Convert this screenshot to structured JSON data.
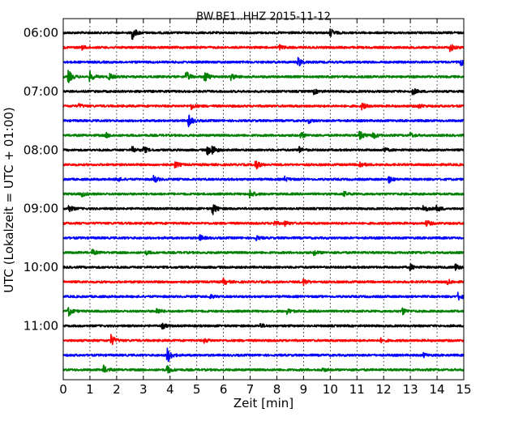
{
  "chart_data": {
    "type": "line",
    "title": "BW.BE1..HHZ 2015-11-12",
    "xlabel": "Zeit  [min]",
    "ylabel": "UTC (Lokalzeit = UTC + 01:00)",
    "xlim": [
      0,
      15
    ],
    "x_ticks": [
      "0",
      "1",
      "2",
      "3",
      "4",
      "5",
      "6",
      "7",
      "8",
      "9",
      "10",
      "11",
      "12",
      "13",
      "14",
      "15"
    ],
    "y_tick_labels": [
      "06:00",
      "07:00",
      "08:00",
      "09:00",
      "10:00",
      "11:00"
    ],
    "trace_interval_minutes": 15,
    "first_trace_start": "06:00",
    "color_cycle": [
      "#000000",
      "#ff0000",
      "#0000ff",
      "#008000"
    ],
    "grid": "vertical dotted",
    "series": [
      {
        "start": "06:00",
        "color": "#000000",
        "events": [
          {
            "t": 2.6,
            "a": 1.0
          },
          {
            "t": 10.0,
            "a": 0.7
          }
        ]
      },
      {
        "start": "06:15",
        "color": "#ff0000",
        "events": [
          {
            "t": 0.7,
            "a": 0.3
          },
          {
            "t": 8.1,
            "a": 0.4
          },
          {
            "t": 14.5,
            "a": 0.6
          }
        ]
      },
      {
        "start": "06:30",
        "color": "#0000ff",
        "events": [
          {
            "t": 8.8,
            "a": 0.8
          },
          {
            "t": 14.9,
            "a": 0.5
          }
        ]
      },
      {
        "start": "06:45",
        "color": "#008000",
        "events": [
          {
            "t": 0.2,
            "a": 1.0
          },
          {
            "t": 1.0,
            "a": 0.8
          },
          {
            "t": 1.7,
            "a": 0.6
          },
          {
            "t": 4.6,
            "a": 0.9
          },
          {
            "t": 5.3,
            "a": 1.0
          },
          {
            "t": 6.3,
            "a": 0.5
          }
        ]
      },
      {
        "start": "07:00",
        "color": "#000000",
        "events": [
          {
            "t": 9.4,
            "a": 0.4
          },
          {
            "t": 13.1,
            "a": 0.5
          }
        ]
      },
      {
        "start": "07:15",
        "color": "#ff0000",
        "events": [
          {
            "t": 0.6,
            "a": 0.3
          },
          {
            "t": 4.8,
            "a": 0.5
          },
          {
            "t": 11.2,
            "a": 0.5
          },
          {
            "t": 13.3,
            "a": 0.4
          }
        ]
      },
      {
        "start": "07:30",
        "color": "#0000ff",
        "events": [
          {
            "t": 4.7,
            "a": 1.0
          },
          {
            "t": 9.2,
            "a": 0.3
          }
        ]
      },
      {
        "start": "07:45",
        "color": "#008000",
        "events": [
          {
            "t": 1.6,
            "a": 0.4
          },
          {
            "t": 8.9,
            "a": 0.5
          },
          {
            "t": 11.1,
            "a": 0.8
          },
          {
            "t": 11.6,
            "a": 0.6
          },
          {
            "t": 13.0,
            "a": 0.4
          }
        ]
      },
      {
        "start": "08:00",
        "color": "#000000",
        "events": [
          {
            "t": 2.6,
            "a": 0.5
          },
          {
            "t": 3.0,
            "a": 0.6
          },
          {
            "t": 5.4,
            "a": 0.8
          },
          {
            "t": 5.6,
            "a": 0.6
          },
          {
            "t": 8.8,
            "a": 0.7
          },
          {
            "t": 12.0,
            "a": 0.4
          }
        ]
      },
      {
        "start": "08:15",
        "color": "#ff0000",
        "events": [
          {
            "t": 4.2,
            "a": 0.5
          },
          {
            "t": 7.2,
            "a": 0.8
          },
          {
            "t": 11.1,
            "a": 0.6
          }
        ]
      },
      {
        "start": "08:30",
        "color": "#0000ff",
        "events": [
          {
            "t": 2.0,
            "a": 0.4
          },
          {
            "t": 3.4,
            "a": 0.6
          },
          {
            "t": 8.3,
            "a": 0.4
          },
          {
            "t": 12.2,
            "a": 0.5
          }
        ]
      },
      {
        "start": "08:45",
        "color": "#008000",
        "events": [
          {
            "t": 0.7,
            "a": 0.4
          },
          {
            "t": 7.0,
            "a": 0.7
          },
          {
            "t": 10.5,
            "a": 0.4
          }
        ]
      },
      {
        "start": "09:00",
        "color": "#000000",
        "events": [
          {
            "t": 0.2,
            "a": 0.6
          },
          {
            "t": 5.6,
            "a": 1.0
          },
          {
            "t": 13.5,
            "a": 0.7
          },
          {
            "t": 14.0,
            "a": 0.5
          }
        ]
      },
      {
        "start": "09:15",
        "color": "#ff0000",
        "events": [
          {
            "t": 7.9,
            "a": 0.4
          },
          {
            "t": 8.3,
            "a": 0.4
          },
          {
            "t": 13.6,
            "a": 0.5
          }
        ]
      },
      {
        "start": "09:30",
        "color": "#0000ff",
        "events": [
          {
            "t": 5.1,
            "a": 0.5
          },
          {
            "t": 7.2,
            "a": 0.4
          }
        ]
      },
      {
        "start": "09:45",
        "color": "#008000",
        "events": [
          {
            "t": 1.1,
            "a": 0.4
          },
          {
            "t": 3.1,
            "a": 0.3
          },
          {
            "t": 9.4,
            "a": 0.4
          }
        ]
      },
      {
        "start": "10:00",
        "color": "#000000",
        "events": [
          {
            "t": 13.0,
            "a": 0.5
          },
          {
            "t": 14.7,
            "a": 0.5
          }
        ]
      },
      {
        "start": "10:15",
        "color": "#ff0000",
        "events": [
          {
            "t": 6.0,
            "a": 0.5
          },
          {
            "t": 9.0,
            "a": 0.5
          },
          {
            "t": 14.4,
            "a": 0.4
          }
        ]
      },
      {
        "start": "10:30",
        "color": "#0000ff",
        "events": [
          {
            "t": 14.8,
            "a": 0.6
          },
          {
            "t": 5.5,
            "a": 0.3
          }
        ]
      },
      {
        "start": "10:45",
        "color": "#008000",
        "events": [
          {
            "t": 0.2,
            "a": 0.8
          },
          {
            "t": 3.5,
            "a": 0.5
          },
          {
            "t": 8.4,
            "a": 0.4
          },
          {
            "t": 12.7,
            "a": 0.6
          }
        ]
      },
      {
        "start": "11:00",
        "color": "#000000",
        "events": [
          {
            "t": 3.7,
            "a": 0.5
          },
          {
            "t": 7.4,
            "a": 0.3
          }
        ]
      },
      {
        "start": "11:15",
        "color": "#ff0000",
        "events": [
          {
            "t": 1.8,
            "a": 0.9
          },
          {
            "t": 5.3,
            "a": 0.3
          },
          {
            "t": 11.9,
            "a": 0.3
          }
        ]
      },
      {
        "start": "11:30",
        "color": "#0000ff",
        "events": [
          {
            "t": 3.9,
            "a": 1.3
          },
          {
            "t": 13.5,
            "a": 0.3
          }
        ]
      },
      {
        "start": "11:45",
        "color": "#008000",
        "events": [
          {
            "t": 1.5,
            "a": 0.7
          },
          {
            "t": 3.9,
            "a": 0.6
          },
          {
            "t": 9.7,
            "a": 0.3
          }
        ]
      }
    ]
  }
}
